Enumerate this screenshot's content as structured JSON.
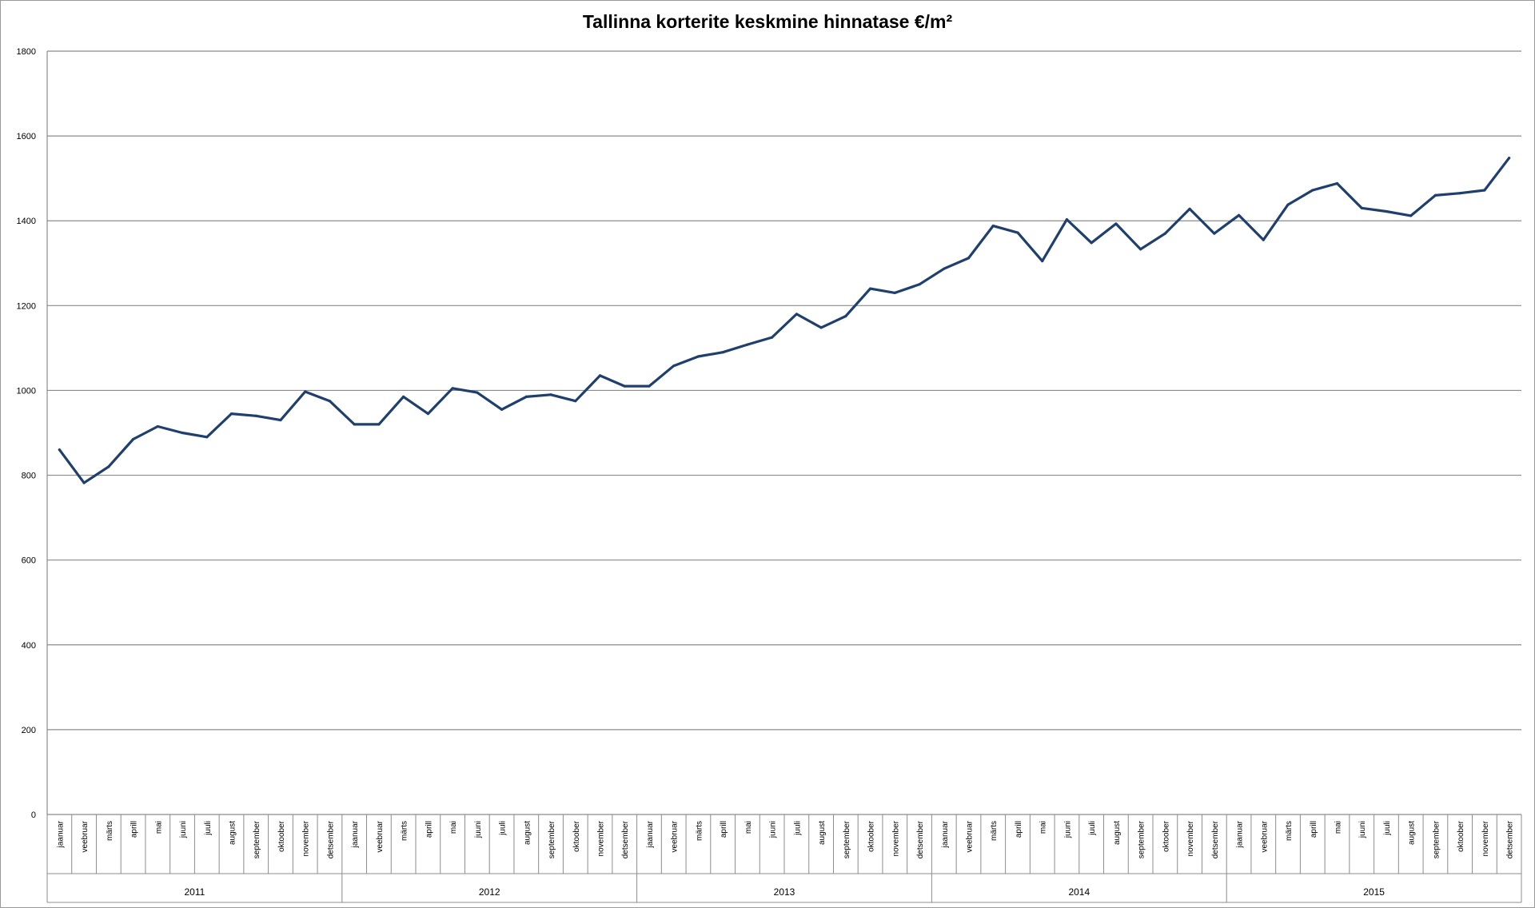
{
  "chart_data": {
    "type": "line",
    "title": "Tallinna korterite keskmine hinnatase €/m²",
    "xlabel": "",
    "ylabel": "",
    "ylim": [
      0,
      1800
    ],
    "yticks": [
      0,
      200,
      400,
      600,
      800,
      1000,
      1200,
      1400,
      1600,
      1800
    ],
    "grid": true,
    "legend": "none",
    "line_color": "#1f3f6e",
    "month_labels": [
      "jaanuar",
      "veebruar",
      "märts",
      "aprill",
      "mai",
      "juuni",
      "juuli",
      "august",
      "september",
      "oktoober",
      "november",
      "detsember"
    ],
    "years": [
      "2011",
      "2012",
      "2013",
      "2014",
      "2015"
    ],
    "series": [
      {
        "values": [
          860,
          782,
          820,
          885,
          915,
          900,
          890,
          945,
          940,
          930,
          997,
          975,
          920,
          920,
          985,
          945,
          1005,
          995,
          955,
          985,
          990,
          975,
          1035,
          1010,
          1010,
          1058,
          1080,
          1090,
          1108,
          1125,
          1180,
          1148,
          1175,
          1240,
          1230,
          1250,
          1287,
          1312,
          1388,
          1372,
          1305,
          1403,
          1348,
          1393,
          1333,
          1370,
          1428,
          1370,
          1413,
          1355,
          1438,
          1472,
          1488,
          1430,
          1422,
          1412,
          1460,
          1465,
          1472,
          1548
        ]
      }
    ]
  }
}
